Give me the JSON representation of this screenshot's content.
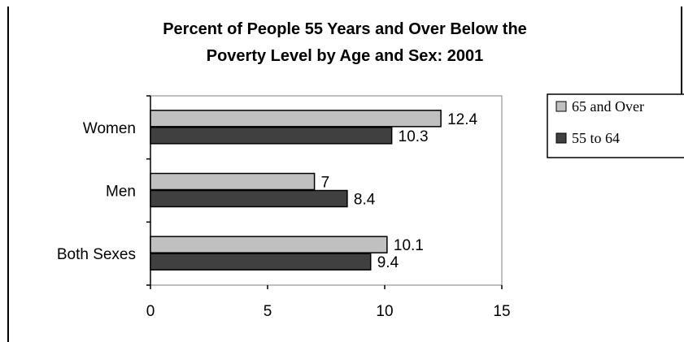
{
  "chart_data": {
    "type": "bar",
    "orientation": "horizontal",
    "title_line1": "Percent of People 55 Years and Over Below the",
    "title_line2": "Poverty Level by Age and Sex: 2001",
    "categories": [
      "Women",
      "Men",
      "Both Sexes"
    ],
    "series": [
      {
        "name": "65 and Over",
        "values": [
          12.4,
          7,
          10.1
        ],
        "color": "#c0c0c0"
      },
      {
        "name": "55 to 64",
        "values": [
          10.3,
          8.4,
          9.4
        ],
        "color": "#404040"
      }
    ],
    "value_labels": [
      [
        "12.4",
        "7",
        "10.1"
      ],
      [
        "10.3",
        "8.4",
        "9.4"
      ]
    ],
    "xlim": [
      0,
      15
    ],
    "xticks": [
      "0",
      "5",
      "10",
      "15"
    ],
    "grid": false,
    "legend_position": "right"
  }
}
